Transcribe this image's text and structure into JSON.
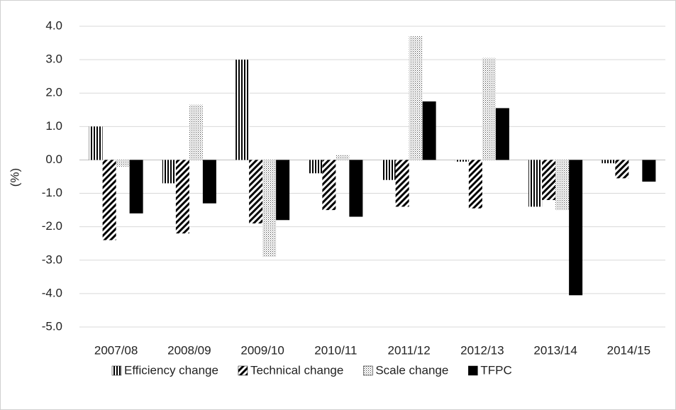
{
  "chart_data": {
    "type": "bar",
    "y_label": "(%)",
    "categories": [
      "2007/08",
      "2008/09",
      "2009/10",
      "2010/11",
      "2011/12",
      "2012/13",
      "2013/14",
      "2014/15"
    ],
    "series": [
      {
        "name": "Efficiency change",
        "color": "#000000",
        "pattern": "vertical",
        "values": [
          1.0,
          -0.7,
          3.0,
          -0.4,
          -0.6,
          -0.05,
          -1.4,
          -0.1
        ]
      },
      {
        "name": "Technical change",
        "color": "#000000",
        "pattern": "diagonal",
        "values": [
          -2.4,
          -2.2,
          -1.9,
          -1.5,
          -1.4,
          -1.45,
          -1.2,
          -0.55
        ]
      },
      {
        "name": "Scale change",
        "color": "#000000",
        "pattern": "dots",
        "values": [
          -0.2,
          1.65,
          -2.9,
          0.15,
          3.7,
          3.05,
          -1.5,
          0.0
        ]
      },
      {
        "name": "TFPC",
        "color": "#000000",
        "pattern": "solid",
        "values": [
          -1.6,
          -1.3,
          -1.8,
          -1.7,
          1.75,
          1.55,
          -4.05,
          -0.65
        ]
      }
    ],
    "ylim": [
      -5,
      4
    ],
    "yticks": [
      {
        "value": 4,
        "label": "4.0"
      },
      {
        "value": 3,
        "label": "3.0"
      },
      {
        "value": 2,
        "label": "2.0"
      },
      {
        "value": 1,
        "label": "1.0"
      },
      {
        "value": 0,
        "label": "0.0"
      },
      {
        "value": -1,
        "label": "-1.0"
      },
      {
        "value": -2,
        "label": "-2.0"
      },
      {
        "value": -3,
        "label": "-3.0"
      },
      {
        "value": -4,
        "label": "-4.0"
      },
      {
        "value": -5,
        "label": "-5.0"
      }
    ],
    "grid": true,
    "legend": "bottom"
  }
}
